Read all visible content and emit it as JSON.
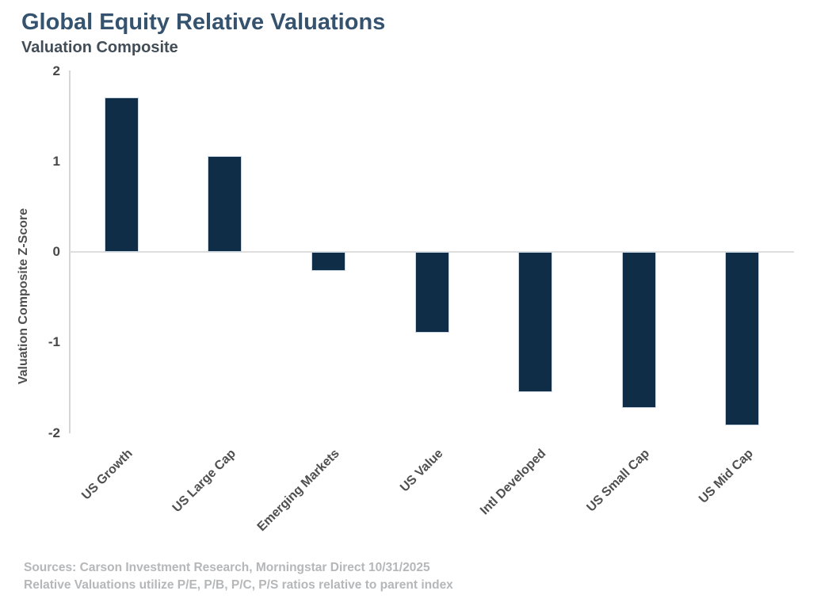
{
  "chart": {
    "title": "Global Equity Relative Valuations",
    "subtitle": "Valuation Composite",
    "ylabel": "Valuation Composite Z-Score"
  },
  "chart_data": {
    "type": "bar",
    "title": "Global Equity Relative Valuations",
    "subtitle": "Valuation Composite",
    "categories": [
      "US Growth",
      "US Large Cap",
      "Emerging Markets",
      "US Value",
      "Intl Developed",
      "US Small Cap",
      "US Mid Cap"
    ],
    "values": [
      1.71,
      1.06,
      -0.21,
      -0.89,
      -1.55,
      -1.72,
      -1.92
    ],
    "xlabel": "",
    "ylabel": "Valuation Composite Z-Score",
    "ylim": [
      -2,
      2
    ],
    "yticks": [
      2,
      1,
      0,
      -1,
      -2
    ],
    "grid": false,
    "legend_position": "none",
    "bar_color": "#0f2d46",
    "bar_border_color": "#c9d6e3",
    "zero_line_color": "#dedede",
    "axis_line_color": "#d6d6d6"
  },
  "colors": {
    "title_text": "#35536f",
    "subtitle_text": "#424d57",
    "axis_text": "#4f4f4f",
    "tick_text": "#474747",
    "footer_text": "#b5b7b9",
    "background": "#ffffff"
  },
  "footer": {
    "line1": "Sources: Carson Investment Research, Morningstar Direct 10/31/2025",
    "line2": "Relative Valuations utilize P/E, P/B, P/C, P/S ratios relative to parent index"
  }
}
